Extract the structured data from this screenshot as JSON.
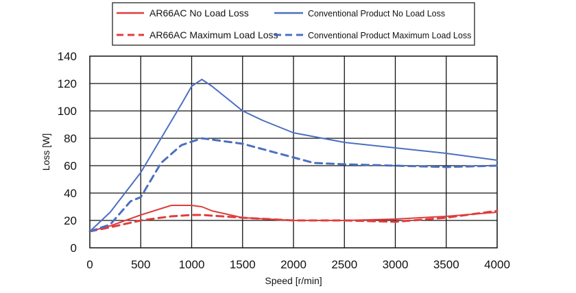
{
  "chart_data": {
    "type": "line",
    "xlabel": "Speed [r/min]",
    "ylabel": "Loss [W]",
    "xlim": [
      0,
      4000
    ],
    "ylim": [
      0,
      140
    ],
    "x_ticks": [
      "0",
      "500",
      "1000",
      "1500",
      "2000",
      "2500",
      "3000",
      "3500",
      "4000"
    ],
    "y_ticks": [
      "0",
      "20",
      "40",
      "60",
      "80",
      "100",
      "120",
      "140"
    ],
    "grid": true,
    "legend_position": "top",
    "series": [
      {
        "name": "AR66AC No Load Loss",
        "color": "#e03c3c",
        "style": "solid",
        "x": [
          0,
          200,
          500,
          800,
          1000,
          1100,
          1200,
          1500,
          2000,
          2500,
          3000,
          3500,
          4000
        ],
        "y": [
          12,
          16,
          24,
          31,
          31,
          30,
          27,
          22,
          20,
          20,
          21,
          23,
          26
        ]
      },
      {
        "name": "AR66AC Maximum Load Loss",
        "color": "#e03c3c",
        "style": "dashed",
        "x": [
          0,
          200,
          500,
          800,
          1000,
          1100,
          1300,
          1500,
          2000,
          2500,
          3000,
          3500,
          4000
        ],
        "y": [
          12,
          15,
          20,
          23,
          24,
          24,
          23,
          22,
          20,
          20,
          19,
          22,
          27
        ]
      },
      {
        "name": "Conventional Product No Load Loss",
        "color": "#4a6fbf",
        "style": "solid",
        "x": [
          0,
          200,
          500,
          700,
          900,
          1000,
          1100,
          1200,
          1500,
          1700,
          2000,
          2500,
          3000,
          3500,
          4000
        ],
        "y": [
          12,
          26,
          55,
          80,
          105,
          118,
          123,
          118,
          100,
          93,
          84,
          77,
          73,
          69,
          64
        ]
      },
      {
        "name": "Conventional Product Maximum Load Loss",
        "color": "#4a6fbf",
        "style": "dashed",
        "x": [
          0,
          200,
          400,
          500,
          700,
          900,
          1100,
          1300,
          1500,
          2000,
          2200,
          2500,
          3000,
          3500,
          4000
        ],
        "y": [
          12,
          17,
          34,
          37,
          62,
          75,
          80,
          78,
          76,
          66,
          62,
          61,
          60,
          59,
          60
        ]
      }
    ]
  }
}
